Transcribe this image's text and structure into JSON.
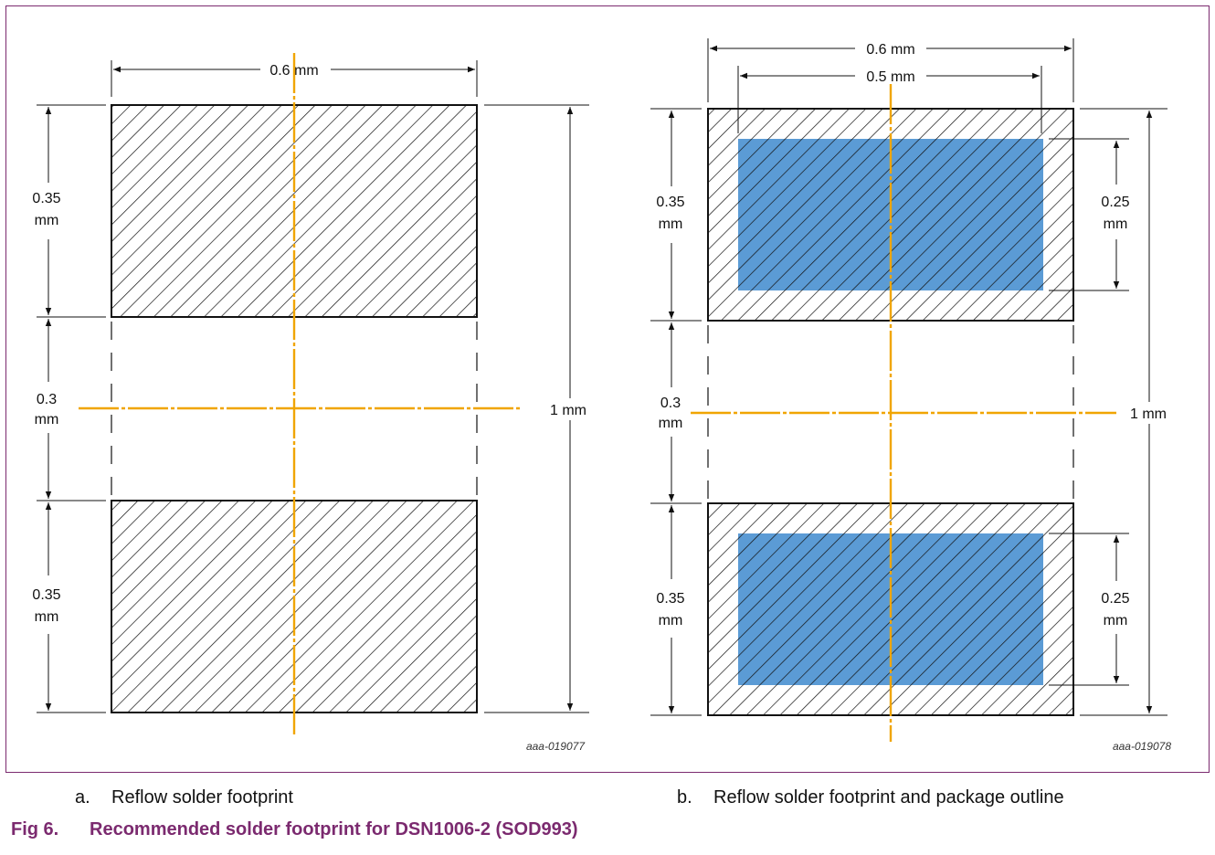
{
  "colors": {
    "frame": "#7b2a6f",
    "centerline": "#f0a500",
    "package_fill": "#5b9bd5",
    "line": "#111111",
    "figure_title": "#7b2a6f"
  },
  "panel_a": {
    "dims": {
      "width_top": "0.6 mm",
      "pad_height_top_1": "0.35",
      "pad_height_top_2": "mm",
      "gap_1": "0.3",
      "gap_2": "mm",
      "total_height": "1 mm",
      "pad_height_bottom_1": "0.35",
      "pad_height_bottom_2": "mm"
    },
    "ref_code": "aaa-019077",
    "caption_letter": "a.",
    "caption": "Reflow solder footprint"
  },
  "panel_b": {
    "dims": {
      "width_outer": "0.6 mm",
      "width_inner": "0.5 mm",
      "pad_height_top_1": "0.35",
      "pad_height_top_2": "mm",
      "package_height_top_1": "0.25",
      "package_height_top_2": "mm",
      "gap_1": "0.3",
      "gap_2": "mm",
      "total_height": "1 mm",
      "pad_height_bottom_1": "0.35",
      "pad_height_bottom_2": "mm",
      "package_height_bottom_1": "0.25",
      "package_height_bottom_2": "mm"
    },
    "ref_code": "aaa-019078",
    "caption_letter": "b.",
    "caption": "Reflow solder footprint and package outline"
  },
  "figure": {
    "number": "Fig 6.",
    "title": "Recommended solder footprint for DSN1006-2 (SOD993)"
  }
}
